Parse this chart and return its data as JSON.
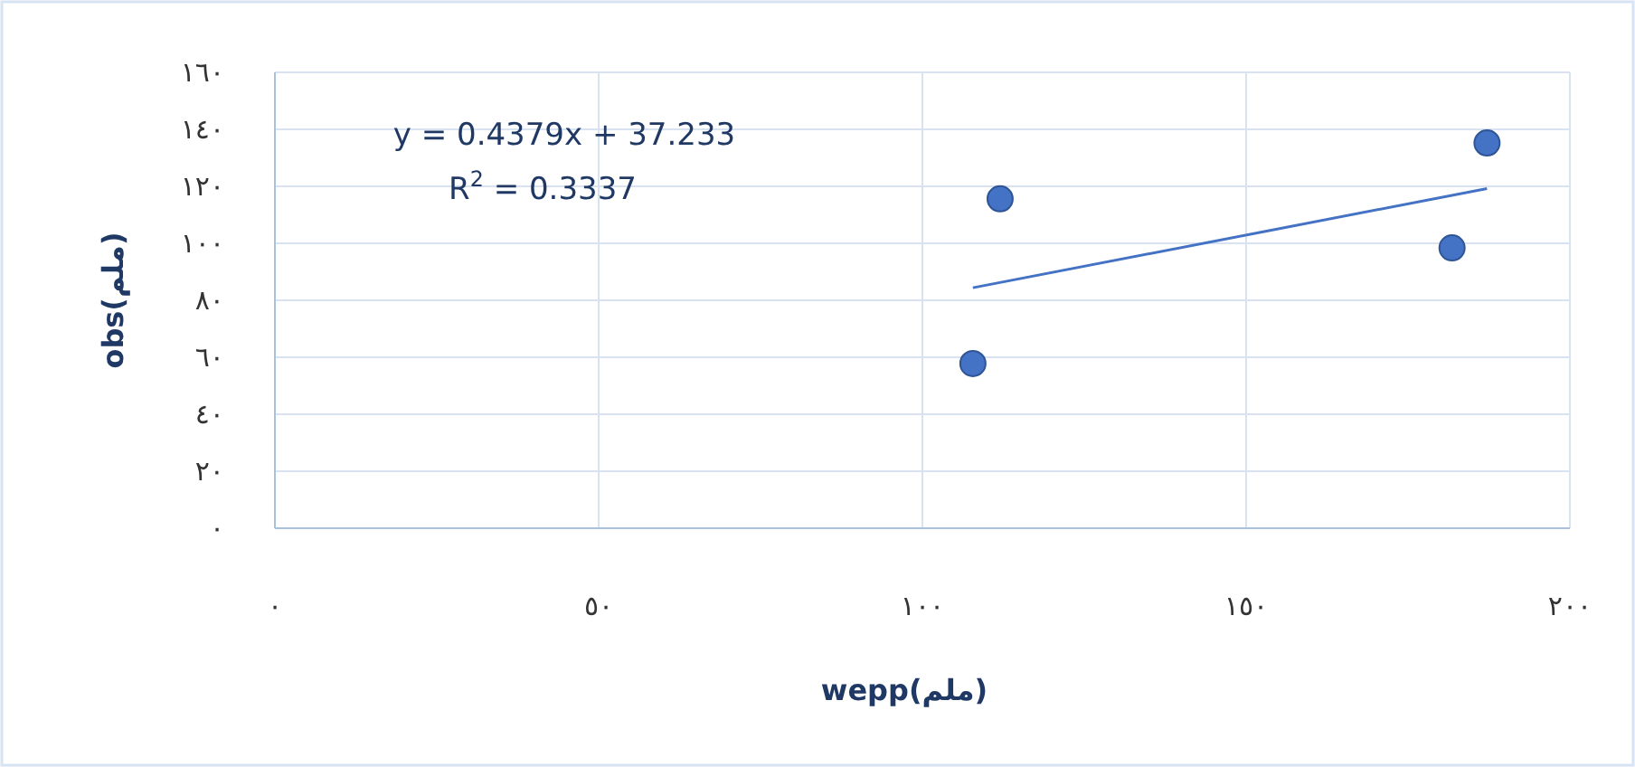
{
  "chart_data": {
    "type": "scatter",
    "xlabel": "wepp(ملم)",
    "ylabel": "obs(ملم)",
    "xlim": [
      0,
      200
    ],
    "ylim": [
      0,
      160
    ],
    "xticks": [
      {
        "value": 0,
        "label": "٠"
      },
      {
        "value": 50,
        "label": "٥٠"
      },
      {
        "value": 100,
        "label": "١٠٠"
      },
      {
        "value": 150,
        "label": "١٥٠"
      },
      {
        "value": 200,
        "label": "٢٠٠"
      }
    ],
    "yticks": [
      {
        "value": 0,
        "label": "٠"
      },
      {
        "value": 20,
        "label": "٢٠"
      },
      {
        "value": 40,
        "label": "٤٠"
      },
      {
        "value": 60,
        "label": "٦٠"
      },
      {
        "value": 80,
        "label": "٨٠"
      },
      {
        "value": 100,
        "label": "١٠٠"
      },
      {
        "value": 120,
        "label": "١٢٠"
      },
      {
        "value": 140,
        "label": "١٤٠"
      },
      {
        "value": 160,
        "label": "١٦٠"
      }
    ],
    "grid": true,
    "series": [
      {
        "marker": "circle",
        "color": "#4472c4",
        "x": [
          107.8,
          112,
          181.8,
          187.2
        ],
        "values": [
          57.8,
          115.6,
          98.4,
          135.2
        ]
      },
      {
        "type": "line",
        "color": "#4472c4",
        "x": [
          107.8,
          187.2
        ],
        "values": [
          84.4,
          119.2
        ]
      }
    ],
    "annotations": [
      "y = 0.4379x + 37.233",
      "R$^{2}$ = 0.3337"
    ]
  }
}
